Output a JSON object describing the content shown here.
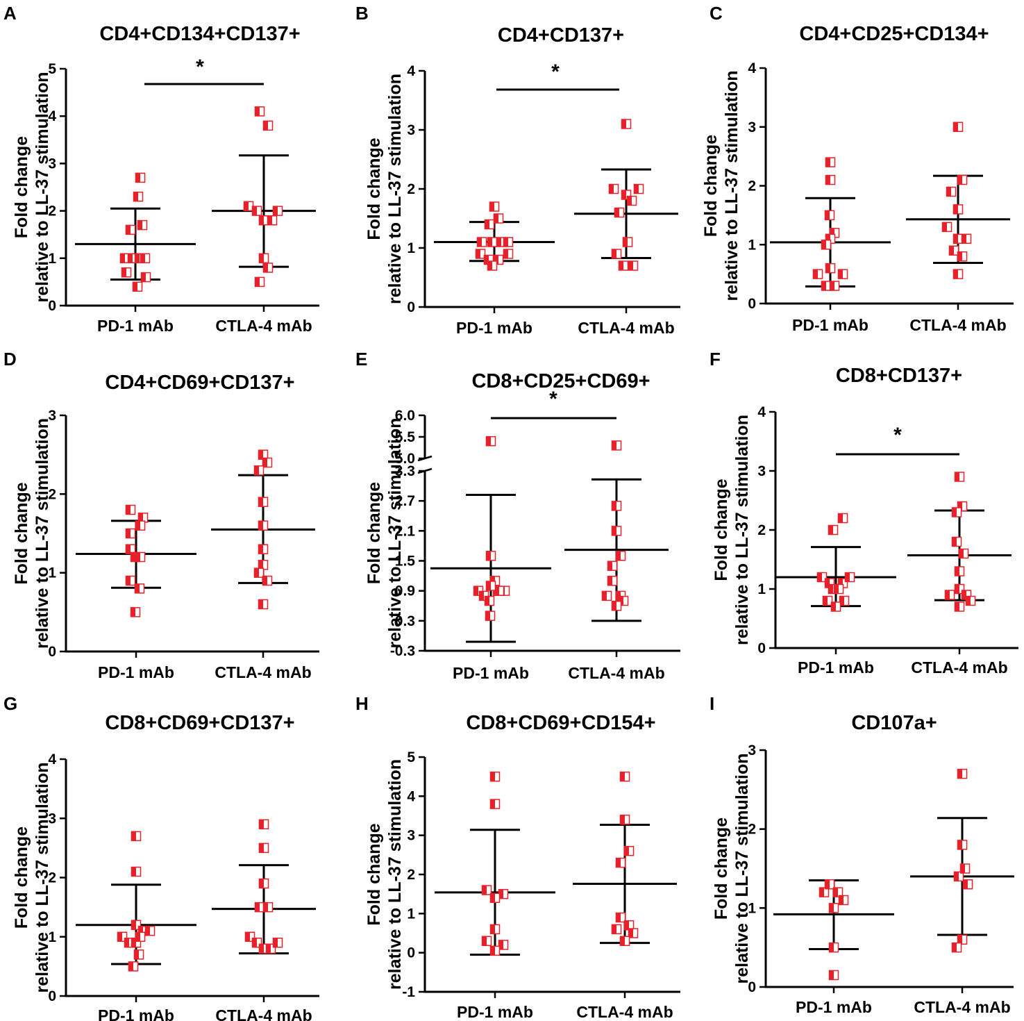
{
  "ylabel_line1": "Fold change",
  "ylabel_line2": "relative to LL-37 stimulation",
  "colors": {
    "point_fill": "#e8202a",
    "point_half": "#ffffff",
    "axis": "#000000"
  },
  "chart_data": [
    {
      "panel": "A",
      "type": "scatter",
      "title": "CD4+CD134+CD137+",
      "categories": [
        "PD-1 mAb",
        "CTLA-4 mAb"
      ],
      "ylim": [
        0,
        5
      ],
      "yticks": [
        0,
        1,
        2,
        3,
        4,
        5
      ],
      "series": [
        {
          "name": "PD-1 mAb",
          "points": [
            [
              0.07,
              2.7
            ],
            [
              0.04,
              2.3
            ],
            [
              -0.07,
              1.6
            ],
            [
              0.1,
              1.7
            ],
            [
              -0.15,
              1.0
            ],
            [
              -0.04,
              1.0
            ],
            [
              0.06,
              1.0
            ],
            [
              0.14,
              1.0
            ],
            [
              -0.13,
              0.7
            ],
            [
              0.15,
              0.6
            ],
            [
              0.03,
              0.4
            ]
          ],
          "mean": 1.3,
          "sd_low": 0.55,
          "sd_high": 2.05
        },
        {
          "name": "CTLA-4 mAb",
          "points": [
            [
              -0.06,
              4.1
            ],
            [
              0.06,
              3.8
            ],
            [
              -0.22,
              2.1
            ],
            [
              -0.1,
              2.0
            ],
            [
              0.2,
              2.0
            ],
            [
              0.0,
              1.8
            ],
            [
              0.12,
              1.8
            ],
            [
              0.0,
              1.0
            ],
            [
              0.06,
              0.8
            ],
            [
              -0.06,
              0.5
            ]
          ],
          "mean": 2.0,
          "sd_low": 0.82,
          "sd_high": 3.17
        }
      ],
      "significance": "*"
    },
    {
      "panel": "B",
      "type": "scatter",
      "title": "CD4+CD137+",
      "categories": [
        "PD-1 mAb",
        "CTLA-4 mAb"
      ],
      "ylim": [
        0,
        4
      ],
      "yticks": [
        0,
        1,
        2,
        3,
        4
      ],
      "series": [
        {
          "name": "PD-1 mAb",
          "points": [
            [
              0.0,
              1.7
            ],
            [
              0.06,
              1.5
            ],
            [
              -0.07,
              1.4
            ],
            [
              -0.18,
              1.1
            ],
            [
              -0.03,
              1.1
            ],
            [
              0.1,
              1.1
            ],
            [
              0.2,
              1.1
            ],
            [
              -0.2,
              0.9
            ],
            [
              0.2,
              0.9
            ],
            [
              -0.08,
              0.8
            ],
            [
              0.06,
              0.8
            ],
            [
              -0.03,
              0.7
            ]
          ],
          "mean": 1.1,
          "sd_low": 0.78,
          "sd_high": 1.44
        },
        {
          "name": "CTLA-4 mAb",
          "points": [
            [
              0.0,
              3.1
            ],
            [
              -0.18,
              2.0
            ],
            [
              0.18,
              2.0
            ],
            [
              0.0,
              1.9
            ],
            [
              0.08,
              1.8
            ],
            [
              -0.1,
              1.6
            ],
            [
              0.02,
              1.1
            ],
            [
              -0.14,
              0.9
            ],
            [
              -0.04,
              0.7
            ],
            [
              0.1,
              0.7
            ]
          ],
          "mean": 1.58,
          "sd_low": 0.83,
          "sd_high": 2.33
        }
      ],
      "significance": "*"
    },
    {
      "panel": "C",
      "type": "scatter",
      "title": "CD4+CD25+CD134+",
      "categories": [
        "PD-1 mAb",
        "CTLA-4 mAb"
      ],
      "ylim": [
        0,
        4
      ],
      "yticks": [
        0,
        1,
        2,
        3,
        4
      ],
      "series": [
        {
          "name": "PD-1 mAb",
          "points": [
            [
              0.0,
              2.4
            ],
            [
              0.0,
              2.1
            ],
            [
              -0.01,
              1.5
            ],
            [
              0.06,
              1.2
            ],
            [
              0.0,
              1.1
            ],
            [
              -0.06,
              1.0
            ],
            [
              -0.18,
              0.5
            ],
            [
              0.18,
              0.5
            ],
            [
              0.0,
              0.6
            ],
            [
              -0.06,
              0.3
            ],
            [
              0.06,
              0.3
            ]
          ],
          "mean": 1.04,
          "sd_low": 0.29,
          "sd_high": 1.79
        },
        {
          "name": "CTLA-4 mAb",
          "points": [
            [
              0.0,
              3.0
            ],
            [
              0.06,
              2.1
            ],
            [
              -0.1,
              1.9
            ],
            [
              0.0,
              1.6
            ],
            [
              -0.16,
              1.3
            ],
            [
              0.0,
              1.1
            ],
            [
              0.12,
              1.1
            ],
            [
              -0.06,
              0.9
            ],
            [
              0.06,
              0.8
            ],
            [
              0.0,
              0.5
            ]
          ],
          "mean": 1.43,
          "sd_low": 0.69,
          "sd_high": 2.17
        }
      ],
      "significance": ""
    },
    {
      "panel": "D",
      "type": "scatter",
      "title": "CD4+CD69+CD137+",
      "categories": [
        "PD-1 mAb",
        "CTLA-4 mAb"
      ],
      "ylim": [
        0,
        3
      ],
      "yticks": [
        0,
        1,
        2,
        3
      ],
      "series": [
        {
          "name": "PD-1 mAb",
          "points": [
            [
              -0.08,
              1.8
            ],
            [
              0.1,
              1.7
            ],
            [
              -0.08,
              1.5
            ],
            [
              0.06,
              1.6
            ],
            [
              -0.08,
              1.3
            ],
            [
              -0.01,
              1.2
            ],
            [
              0.06,
              1.2
            ],
            [
              -0.08,
              0.9
            ],
            [
              0.05,
              0.8
            ],
            [
              -0.01,
              0.5
            ]
          ],
          "mean": 1.24,
          "sd_low": 0.81,
          "sd_high": 1.66
        },
        {
          "name": "CTLA-4 mAb",
          "points": [
            [
              0.0,
              2.5
            ],
            [
              0.06,
              2.4
            ],
            [
              -0.06,
              2.3
            ],
            [
              0.0,
              1.9
            ],
            [
              0.0,
              1.6
            ],
            [
              0.0,
              1.3
            ],
            [
              0.0,
              1.1
            ],
            [
              -0.06,
              1.0
            ],
            [
              0.06,
              0.9
            ],
            [
              0.0,
              0.6
            ]
          ],
          "mean": 1.55,
          "sd_low": 0.87,
          "sd_high": 2.24
        }
      ],
      "significance": ""
    },
    {
      "panel": "E",
      "type": "scatter",
      "title": "CD8+CD25+CD69+",
      "categories": [
        "PD-1 mAb",
        "CTLA-4 mAb"
      ],
      "broken_axis": {
        "lower_range": [
          -0.3,
          3.3
        ],
        "upper_range": [
          5.0,
          6.0
        ]
      },
      "yticks_lower": [
        -0.3,
        0.3,
        0.9,
        1.5,
        2.1,
        2.7,
        3.3
      ],
      "yticks_upper": [
        5.0,
        5.5,
        6.0
      ],
      "ytick_labels_lower": [
        "-0.3",
        "0.3",
        "0.9",
        "1.5",
        "2.1",
        "2.7",
        "3.3"
      ],
      "ytick_labels_upper": [
        "5.0",
        "5.5",
        "6.0"
      ],
      "series": [
        {
          "name": "PD-1 mAb",
          "points": [
            [
              0.0,
              5.4
            ],
            [
              0.0,
              1.6
            ],
            [
              0.06,
              1.1
            ],
            [
              0.1,
              0.9
            ],
            [
              -0.18,
              0.9
            ],
            [
              0.2,
              0.9
            ],
            [
              0.12,
              0.9
            ],
            [
              0.0,
              1.0
            ],
            [
              -0.1,
              0.8
            ],
            [
              -0.02,
              0.7
            ],
            [
              -0.01,
              0.4
            ]
          ],
          "mean": 1.35,
          "sd_low": -0.12,
          "sd_high": 2.82
        },
        {
          "name": "CTLA-4 mAb",
          "points": [
            [
              0.0,
              5.3
            ],
            [
              0.0,
              2.6
            ],
            [
              0.0,
              2.1
            ],
            [
              0.06,
              1.6
            ],
            [
              -0.06,
              1.4
            ],
            [
              -0.06,
              1.1
            ],
            [
              -0.14,
              0.8
            ],
            [
              0.06,
              0.8
            ],
            [
              0.1,
              0.7
            ],
            [
              0.0,
              0.6
            ]
          ],
          "mean": 1.72,
          "sd_low": 0.3,
          "sd_high": 3.13
        }
      ],
      "significance": "*"
    },
    {
      "panel": "F",
      "type": "scatter",
      "title": "CD8+CD137+",
      "categories": [
        "PD-1 mAb",
        "CTLA-4 mAb"
      ],
      "ylim": [
        0,
        4
      ],
      "yticks": [
        0,
        1,
        2,
        3,
        4
      ],
      "series": [
        {
          "name": "PD-1 mAb",
          "points": [
            [
              0.1,
              2.2
            ],
            [
              -0.04,
              2.0
            ],
            [
              -0.2,
              1.2
            ],
            [
              -0.09,
              1.1
            ],
            [
              0.1,
              1.1
            ],
            [
              0.2,
              1.2
            ],
            [
              -0.04,
              1.0
            ],
            [
              0.04,
              1.0
            ],
            [
              -0.12,
              0.8
            ],
            [
              0.12,
              0.8
            ],
            [
              0.0,
              0.7
            ]
          ],
          "mean": 1.2,
          "sd_low": 0.71,
          "sd_high": 1.71
        },
        {
          "name": "CTLA-4 mAb",
          "points": [
            [
              0.0,
              2.9
            ],
            [
              0.04,
              2.4
            ],
            [
              -0.04,
              2.3
            ],
            [
              -0.04,
              1.8
            ],
            [
              0.06,
              1.6
            ],
            [
              0.0,
              1.3
            ],
            [
              0.0,
              1.0
            ],
            [
              -0.14,
              0.9
            ],
            [
              0.1,
              0.9
            ],
            [
              0.16,
              0.8
            ],
            [
              0.0,
              0.7
            ]
          ],
          "mean": 1.57,
          "sd_low": 0.81,
          "sd_high": 2.33
        }
      ],
      "significance": "*"
    },
    {
      "panel": "G",
      "type": "scatter",
      "title": "CD8+CD69+CD137+",
      "categories": [
        "PD-1 mAb",
        "CTLA-4 mAb"
      ],
      "ylim": [
        0,
        4
      ],
      "yticks": [
        0,
        1,
        2,
        3,
        4
      ],
      "series": [
        {
          "name": "PD-1 mAb",
          "points": [
            [
              0.0,
              2.7
            ],
            [
              0.0,
              2.1
            ],
            [
              0.0,
              1.2
            ],
            [
              0.1,
              1.1
            ],
            [
              0.2,
              1.1
            ],
            [
              -0.2,
              1.0
            ],
            [
              -0.1,
              0.9
            ],
            [
              0.0,
              0.9
            ],
            [
              0.06,
              1.0
            ],
            [
              0.04,
              0.7
            ],
            [
              -0.04,
              0.5
            ]
          ],
          "mean": 1.2,
          "sd_low": 0.54,
          "sd_high": 1.88
        },
        {
          "name": "CTLA-4 mAb",
          "points": [
            [
              0.0,
              2.9
            ],
            [
              0.0,
              2.5
            ],
            [
              0.0,
              1.9
            ],
            [
              -0.06,
              1.5
            ],
            [
              0.06,
              1.5
            ],
            [
              -0.2,
              1.0
            ],
            [
              -0.1,
              0.9
            ],
            [
              0.0,
              0.8
            ],
            [
              0.1,
              0.8
            ],
            [
              0.2,
              0.9
            ]
          ],
          "mean": 1.47,
          "sd_low": 0.72,
          "sd_high": 2.21
        }
      ],
      "significance": ""
    },
    {
      "panel": "H",
      "type": "scatter",
      "title": "CD8+CD69+CD154+",
      "categories": [
        "PD-1 mAb",
        "CTLA-4 mAb"
      ],
      "ylim": [
        -1,
        5
      ],
      "yticks": [
        -1,
        0,
        1,
        2,
        3,
        4,
        5
      ],
      "series": [
        {
          "name": "PD-1 mAb",
          "points": [
            [
              0.0,
              4.5
            ],
            [
              0.0,
              3.8
            ],
            [
              -0.12,
              1.6
            ],
            [
              0.12,
              1.5
            ],
            [
              0.0,
              1.4
            ],
            [
              0.0,
              0.6
            ],
            [
              -0.12,
              0.3
            ],
            [
              0.12,
              0.2
            ],
            [
              0.0,
              0.05
            ]
          ],
          "mean": 1.54,
          "sd_low": -0.05,
          "sd_high": 3.14
        },
        {
          "name": "CTLA-4 mAb",
          "points": [
            [
              0.0,
              4.5
            ],
            [
              0.0,
              3.4
            ],
            [
              0.06,
              2.6
            ],
            [
              -0.06,
              2.3
            ],
            [
              -0.06,
              0.9
            ],
            [
              0.06,
              0.7
            ],
            [
              -0.12,
              0.6
            ],
            [
              0.12,
              0.5
            ],
            [
              0.0,
              0.3
            ]
          ],
          "mean": 1.76,
          "sd_low": 0.25,
          "sd_high": 3.27
        }
      ],
      "significance": ""
    },
    {
      "panel": "I",
      "type": "scatter",
      "title": "CD107a+",
      "categories": [
        "PD-1 mAb",
        "CTLA-4 mAb"
      ],
      "ylim": [
        0,
        3
      ],
      "yticks": [
        0,
        1,
        2,
        3
      ],
      "series": [
        {
          "name": "PD-1 mAb",
          "points": [
            [
              -0.14,
              1.2
            ],
            [
              -0.06,
              1.3
            ],
            [
              0.06,
              1.2
            ],
            [
              0.14,
              1.1
            ],
            [
              0.0,
              1.0
            ],
            [
              0.0,
              0.5
            ],
            [
              0.0,
              0.15
            ]
          ],
          "mean": 0.92,
          "sd_low": 0.48,
          "sd_high": 1.35
        },
        {
          "name": "CTLA-4 mAb",
          "points": [
            [
              0.0,
              2.7
            ],
            [
              0.0,
              1.8
            ],
            [
              -0.05,
              1.4
            ],
            [
              0.04,
              1.5
            ],
            [
              0.08,
              1.3
            ],
            [
              0.0,
              0.6
            ],
            [
              -0.08,
              0.5
            ]
          ],
          "mean": 1.4,
          "sd_low": 0.66,
          "sd_high": 2.14
        }
      ],
      "significance": ""
    }
  ]
}
